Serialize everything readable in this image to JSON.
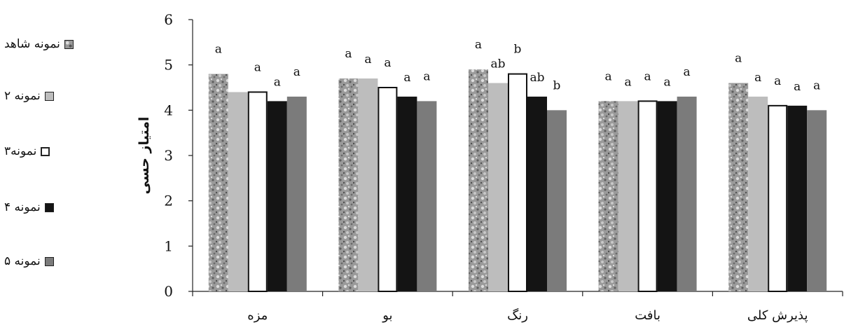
{
  "chart_data": {
    "type": "bar",
    "ylabel": "امتیاز حسی",
    "ylim": [
      0,
      6
    ],
    "yticks": [
      "0",
      "1",
      "2",
      "3",
      "4",
      "5",
      "6"
    ],
    "categories": [
      "مزه",
      "بو",
      "رنگ",
      "بافت",
      "پذیرش کلی"
    ],
    "legend_position": "left",
    "grid": false,
    "series": [
      {
        "name": "نمونه شاهد",
        "style": "texture",
        "color": "#8a8a8a",
        "values": [
          4.8,
          4.7,
          4.9,
          4.2,
          4.6
        ],
        "letters": [
          "a",
          "a",
          "a",
          "a",
          "a"
        ]
      },
      {
        "name": "نمونه ۲",
        "style": "solid",
        "color": "#bdbdbd",
        "values": [
          4.4,
          4.7,
          4.6,
          4.2,
          4.3
        ],
        "letters": [
          "",
          "a",
          "ab",
          "a",
          "a"
        ]
      },
      {
        "name": "نمونه۳",
        "style": "outline",
        "color": "#ffffff",
        "values": [
          4.4,
          4.5,
          4.8,
          4.2,
          4.1
        ],
        "letters": [
          "a",
          "a",
          "b",
          "a",
          "a"
        ]
      },
      {
        "name": "نمونه ۴",
        "style": "solid",
        "color": "#141414",
        "values": [
          4.2,
          4.3,
          4.3,
          4.2,
          4.1
        ],
        "letters": [
          "a",
          "a",
          "ab",
          "a",
          "a"
        ]
      },
      {
        "name": "نمونه ۵",
        "style": "solid",
        "color": "#7b7b7b",
        "values": [
          4.3,
          4.2,
          4.0,
          4.3,
          4.0
        ],
        "letters": [
          "a",
          "a",
          "b",
          "a",
          "a"
        ]
      }
    ]
  }
}
